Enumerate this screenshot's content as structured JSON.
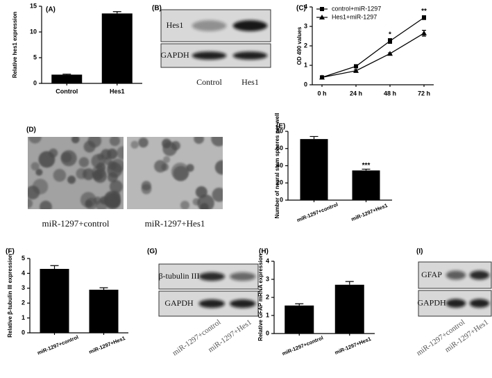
{
  "chart_data": [
    {
      "type": "bar",
      "label": "(A)",
      "ylabel": "Relative hes1 expression",
      "categories": [
        "Control",
        "Hes1"
      ],
      "values": [
        1.7,
        13.6
      ],
      "errors": [
        0.1,
        0.35
      ],
      "color": "#000000",
      "ylim": [
        0,
        15
      ],
      "yticks": [
        0,
        5,
        10,
        15
      ]
    },
    {
      "type": "line",
      "label": "(C)",
      "ylabel": "OD 490 values",
      "categories": [
        "0 h",
        "24 h",
        "48 h",
        "72 h"
      ],
      "series": [
        {
          "name": "control+miR-1297",
          "color": "#000000",
          "marker": "square",
          "values": [
            0.38,
            0.95,
            2.25,
            3.45
          ],
          "errors": [
            0.03,
            0.08,
            0.12,
            0.1
          ]
        },
        {
          "name": "Hes1+miR-1297",
          "color": "#000000",
          "marker": "triangle",
          "values": [
            0.38,
            0.72,
            1.6,
            2.65
          ],
          "errors": [
            0.03,
            0.05,
            0.04,
            0.15
          ]
        }
      ],
      "significance": [
        null,
        null,
        "*",
        "**"
      ],
      "ylim": [
        0,
        4
      ],
      "yticks": [
        0,
        1,
        2,
        3,
        4
      ],
      "legend": "upper left"
    },
    {
      "type": "bar",
      "label": "(E)",
      "ylabel": "Number of neural stem spheres per well",
      "categories": [
        "miR-1297+control",
        "miR-1297+Hes1"
      ],
      "values": [
        71,
        34.5
      ],
      "errors": [
        3,
        1.5
      ],
      "significance": [
        null,
        "***"
      ],
      "color": "#000000",
      "ylim": [
        0,
        80
      ],
      "yticks": [
        0,
        20,
        40,
        60,
        80
      ]
    },
    {
      "type": "bar",
      "label": "(F)",
      "ylabel": "Relative β-tubulin III expression",
      "categories": [
        "miR-1297+control",
        "miR-1297+Hes1"
      ],
      "values": [
        4.3,
        2.9
      ],
      "errors": [
        0.22,
        0.13
      ],
      "color": "#000000",
      "ylim": [
        0,
        5
      ],
      "yticks": [
        0,
        1,
        2,
        3,
        4,
        5
      ]
    },
    {
      "type": "bar",
      "label": "(H)",
      "ylabel": "Relative GFAP mRNA expression",
      "categories": [
        "miR-1297+control",
        "miR-1297+Hes1"
      ],
      "values": [
        1.55,
        2.7
      ],
      "errors": [
        0.1,
        0.18
      ],
      "color": "#000000",
      "ylim": [
        0,
        4
      ],
      "yticks": [
        0,
        1,
        2,
        3,
        4
      ]
    }
  ],
  "figure_d": {
    "label": "(D)",
    "captions": [
      "miR-1297+control",
      "miR-1297+Hes1"
    ]
  },
  "blots": [
    {
      "label": "(B)",
      "rows": [
        "Hes1",
        "GAPDH"
      ],
      "lanes": [
        "Control",
        "Hes1"
      ]
    },
    {
      "label": "(G)",
      "rows": [
        "β-tubulin III",
        "GAPDH"
      ],
      "lanes": [
        "miR-1297+control",
        "miR-1297+Hes1"
      ]
    },
    {
      "label": "(I)",
      "rows": [
        "GFAP",
        "GAPDH"
      ],
      "lanes": [
        "miR-1297+control",
        "miR-1297+Hes1"
      ]
    }
  ]
}
